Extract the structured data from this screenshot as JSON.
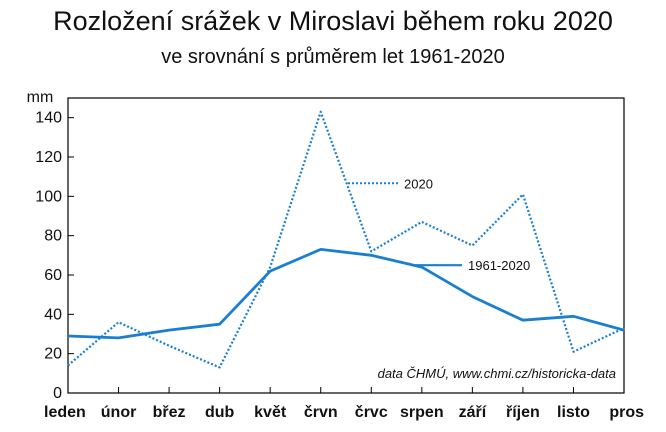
{
  "chart_data": {
    "type": "line",
    "title": "Rozložení srážek v Miroslavi během roku 2020",
    "subtitle": "ve srovnání s průměrem let 1961-2020",
    "ylabel": "mm",
    "ylim": [
      0,
      150
    ],
    "yticks": [
      0,
      20,
      40,
      60,
      80,
      100,
      120,
      140
    ],
    "categories": [
      "leden",
      "únor",
      "břez",
      "dub",
      "květ",
      "črvn",
      "črvc",
      "srpen",
      "září",
      "říjen",
      "listo",
      "pros"
    ],
    "series": [
      {
        "name": "2020",
        "style": "dotted",
        "color": "#1a7fd0",
        "values": [
          14,
          36,
          24,
          13,
          64,
          143,
          72,
          87,
          75,
          101,
          21,
          33
        ]
      },
      {
        "name": "1961-2020",
        "style": "solid",
        "color": "#1a7fd0",
        "values": [
          29,
          28,
          32,
          35,
          62,
          73,
          70,
          64,
          49,
          37,
          39,
          32
        ]
      }
    ],
    "grid": false,
    "annotation": "data ČHMÚ, www.chmi.cz/historicka-data"
  }
}
